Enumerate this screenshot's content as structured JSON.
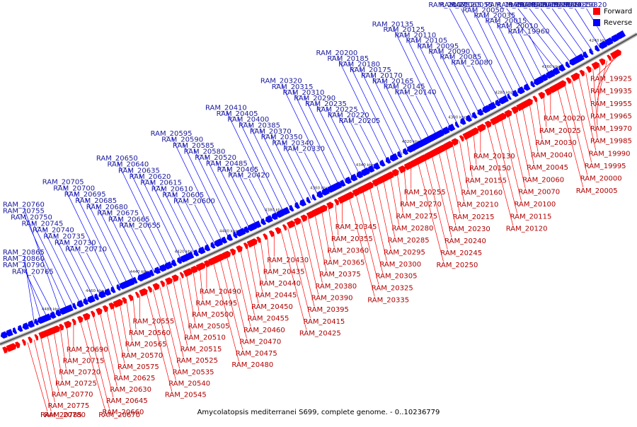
{
  "colors": {
    "forward": "#ff0000",
    "reverse": "#0000ff",
    "axis": "#555555"
  },
  "legend": {
    "forward": "Forward",
    "reverse": "Reverse"
  },
  "caption": "Amycolatopsis mediterranei S699, complete genome. - 0..10236779",
  "ticks": [
    "4240 kbp",
    "4260 kbp",
    "4280 kbp",
    "4300 kbp",
    "4320 kbp",
    "4340 kbp",
    "4360 kbp",
    "4380 kbp",
    "4400 kbp",
    "4420 kbp",
    "4440 kbp",
    "4460 kbp",
    "4480 kbp"
  ],
  "reverse_labels": [
    "RAM_19820",
    "RAM_19850",
    "RAM_19880",
    "RAM_19895",
    "RAM_19915",
    "RAM_19920",
    "RAM_19945",
    "RAM_19950",
    "RAM_19960",
    "RAM_20010",
    "RAM_20015",
    "RAM_20035",
    "RAM_20050",
    "RAM_20055",
    "RAM_20065",
    "RAM_20075",
    "RAM_20080",
    "RAM_20085",
    "RAM_20090",
    "RAM_20095",
    "RAM_20105",
    "RAM_20110",
    "RAM_20125",
    "RAM_20135",
    "RAM_20140",
    "RAM_20145",
    "RAM_20165",
    "RAM_20170",
    "RAM_20175",
    "RAM_20180",
    "RAM_20185",
    "RAM_20200",
    "RAM_20205",
    "RAM_20220",
    "RAM_20225",
    "RAM_20235",
    "RAM_20290",
    "RAM_20310",
    "RAM_20315",
    "RAM_20320",
    "RAM_20330",
    "RAM_20340",
    "RAM_20350",
    "RAM_20370",
    "RAM_20385",
    "RAM_20400",
    "RAM_20405",
    "RAM_20410",
    "RAM_20420",
    "RAM_20465",
    "RAM_20485",
    "RAM_20520",
    "RAM_20580",
    "RAM_20585",
    "RAM_20590",
    "RAM_20595",
    "RAM_20600",
    "RAM_20605",
    "RAM_20610",
    "RAM_20615",
    "RAM_20620",
    "RAM_20635",
    "RAM_20640",
    "RAM_20650",
    "RAM_20655",
    "RAM_20665",
    "RAM_20675",
    "RAM_20680",
    "RAM_20685",
    "RAM_20695",
    "RAM_20700",
    "RAM_20705",
    "RAM_20710",
    "RAM_20730",
    "RAM_20735",
    "RAM_20740",
    "RAM_20745",
    "RAM_20750",
    "RAM_20755",
    "RAM_20760",
    "RAM_20765",
    "RAM_20790",
    "RAM_20860",
    "RAM_20865"
  ],
  "forward_labels": [
    "RAM_19925",
    "RAM_19935",
    "RAM_19955",
    "RAM_19965",
    "RAM_19970",
    "RAM_19985",
    "RAM_19990",
    "RAM_19995",
    "RAM_20000",
    "RAM_20005",
    "RAM_20020",
    "RAM_20025",
    "RAM_20030",
    "RAM_20040",
    "RAM_20045",
    "RAM_20060",
    "RAM_20070",
    "RAM_20100",
    "RAM_20115",
    "RAM_20120",
    "RAM_20130",
    "RAM_20150",
    "RAM_20155",
    "RAM_20160",
    "RAM_20210",
    "RAM_20215",
    "RAM_20230",
    "RAM_20240",
    "RAM_20245",
    "RAM_20250",
    "RAM_20255",
    "RAM_20270",
    "RAM_20275",
    "RAM_20280",
    "RAM_20285",
    "RAM_20295",
    "RAM_20300",
    "RAM_20305",
    "RAM_20325",
    "RAM_20335",
    "RAM_20345",
    "RAM_20355",
    "RAM_20360",
    "RAM_20365",
    "RAM_20375",
    "RAM_20380",
    "RAM_20390",
    "RAM_20395",
    "RAM_20415",
    "RAM_20425",
    "RAM_20430",
    "RAM_20435",
    "RAM_20440",
    "RAM_20445",
    "RAM_20450",
    "RAM_20455",
    "RAM_20460",
    "RAM_20470",
    "RAM_20475",
    "RAM_20480",
    "RAM_20490",
    "RAM_20495",
    "RAM_20500",
    "RAM_20505",
    "RAM_20510",
    "RAM_20515",
    "RAM_20525",
    "RAM_20535",
    "RAM_20540",
    "RAM_20545",
    "RAM_20555",
    "RAM_20560",
    "RAM_20565",
    "RAM_20570",
    "RAM_20575",
    "RAM_20625",
    "RAM_20630",
    "RAM_20645",
    "RAM_20660",
    "RAM_20670",
    "RAM_20690",
    "RAM_20715",
    "RAM_20720",
    "RAM_20725",
    "RAM_20770",
    "RAM_20775",
    "RAM_20780",
    "RAM_20785"
  ]
}
